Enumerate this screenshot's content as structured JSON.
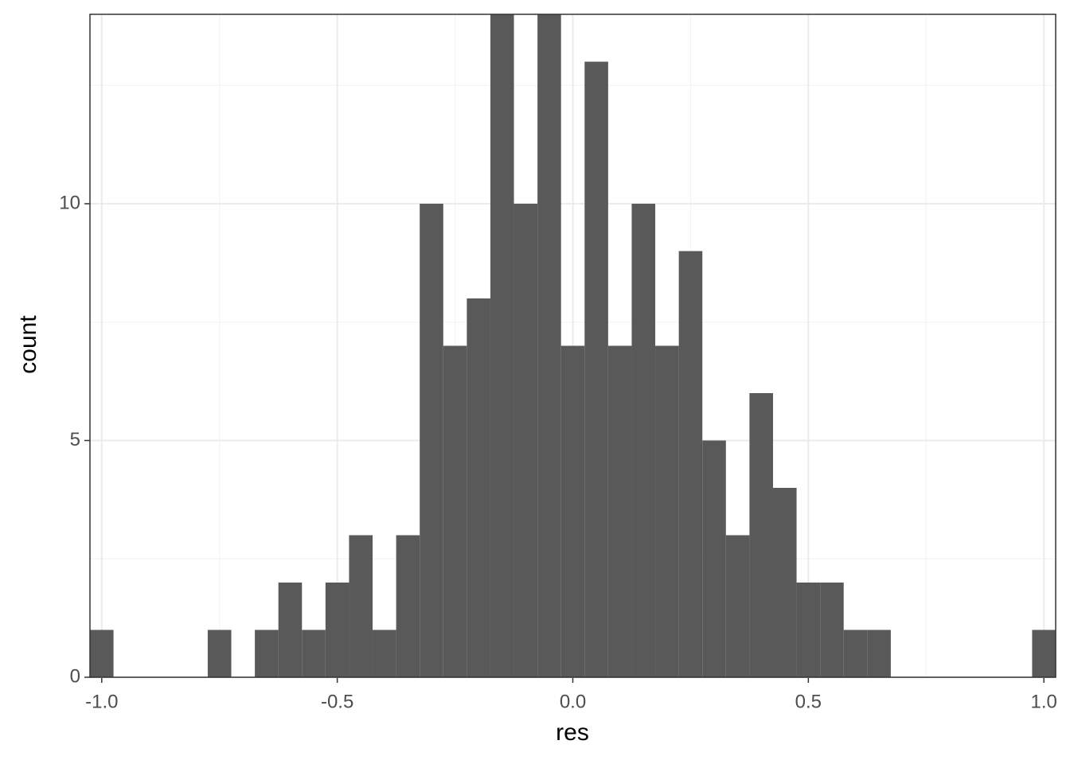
{
  "chart_data": {
    "type": "histogram",
    "x_label": "res",
    "y_label": "count",
    "bins": [
      -1.025,
      -0.975,
      -0.925,
      -0.875,
      -0.825,
      -0.775,
      -0.725,
      -0.675,
      -0.625,
      -0.575,
      -0.525,
      -0.475,
      -0.425,
      -0.375,
      -0.325,
      -0.275,
      -0.225,
      -0.175,
      -0.125,
      -0.075,
      -0.025,
      0.025,
      0.075,
      0.125,
      0.175,
      0.225,
      0.275,
      0.325,
      0.375,
      0.425,
      0.475,
      0.525,
      0.575,
      0.625,
      0.675,
      0.725,
      0.775,
      0.825,
      0.875,
      0.925,
      0.975,
      1.025
    ],
    "values": [
      1,
      0,
      0,
      0,
      0,
      1,
      0,
      1,
      2,
      1,
      2,
      3,
      1,
      3,
      10,
      7,
      8,
      14,
      10,
      14,
      7,
      13,
      7,
      10,
      7,
      9,
      5,
      3,
      6,
      4,
      2,
      2,
      1,
      1,
      0,
      0,
      0,
      0,
      0,
      0,
      1
    ],
    "color": "#595959",
    "xlim": [
      -1.025,
      1.025
    ],
    "ylim": [
      0,
      14
    ],
    "xticks": [
      {
        "value": -1.0,
        "label": "-1.0"
      },
      -0.5,
      {
        "value": 0.0,
        "label": "0.0"
      },
      0.5,
      {
        "value": 1.0,
        "label": "1.0"
      }
    ],
    "yticks": [
      0,
      5,
      10
    ],
    "grid": true,
    "minor_grid": true
  }
}
